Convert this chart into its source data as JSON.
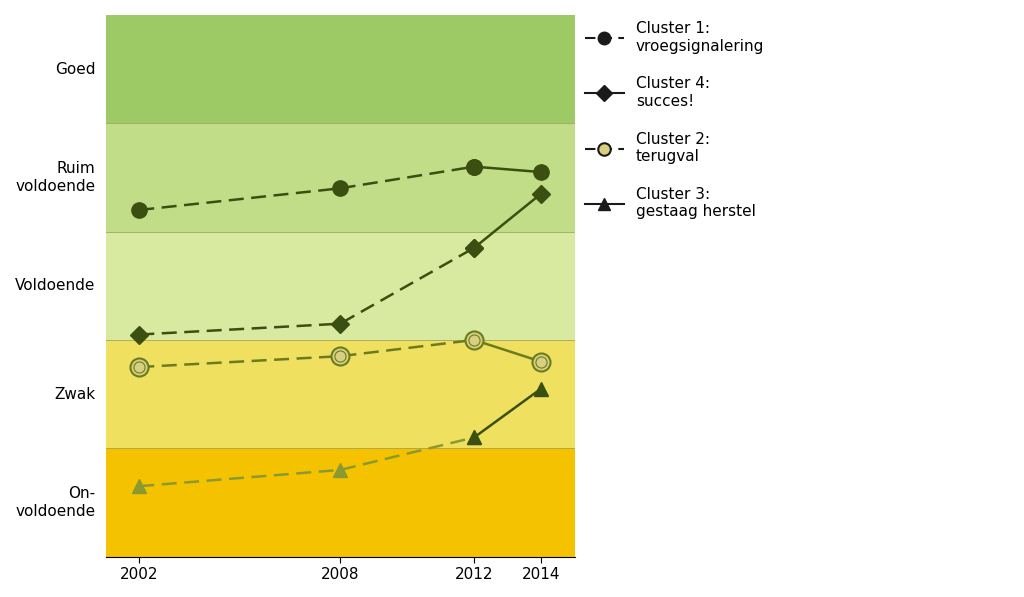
{
  "years": [
    2002,
    2008,
    2012,
    2014
  ],
  "cluster1": [
    5.7,
    5.9,
    6.1,
    6.05
  ],
  "cluster4": [
    4.55,
    4.65,
    5.35,
    5.85
  ],
  "cluster2": [
    4.25,
    4.35,
    4.5,
    4.3
  ],
  "cluster3": [
    3.15,
    3.3,
    3.6,
    4.05
  ],
  "y_bands": [
    {
      "ymin": 2.5,
      "ymax": 3.5,
      "color": "#f5c200"
    },
    {
      "ymin": 3.5,
      "ymax": 4.5,
      "color": "#f0e060"
    },
    {
      "ymin": 4.5,
      "ymax": 5.5,
      "color": "#d8eaa0"
    },
    {
      "ymin": 5.5,
      "ymax": 6.5,
      "color": "#c2dd88"
    },
    {
      "ymin": 6.5,
      "ymax": 7.5,
      "color": "#9eca66"
    }
  ],
  "band_lines": [
    3.5,
    4.5,
    5.5,
    6.5
  ],
  "ytick_positions": [
    3.0,
    4.0,
    5.0,
    6.0,
    7.0
  ],
  "ytick_labels": [
    "On-\nvoldoende",
    "Zwak",
    "Voldoende",
    "Ruim\nvoldoende",
    "Goed"
  ],
  "ylim": [
    2.5,
    7.5
  ],
  "xlim": [
    2001,
    2015
  ],
  "legend_labels": [
    "Cluster 1:\nvroegsignalering",
    "Cluster 4:\nsucces!",
    "Cluster 2:\nterugval",
    "Cluster 3:\ngestaag herstel"
  ],
  "line_color_dark": "#3a4f10",
  "line_color_mid": "#6b7c20",
  "line_color_light": "#8a9a30",
  "background_color": "#ffffff"
}
